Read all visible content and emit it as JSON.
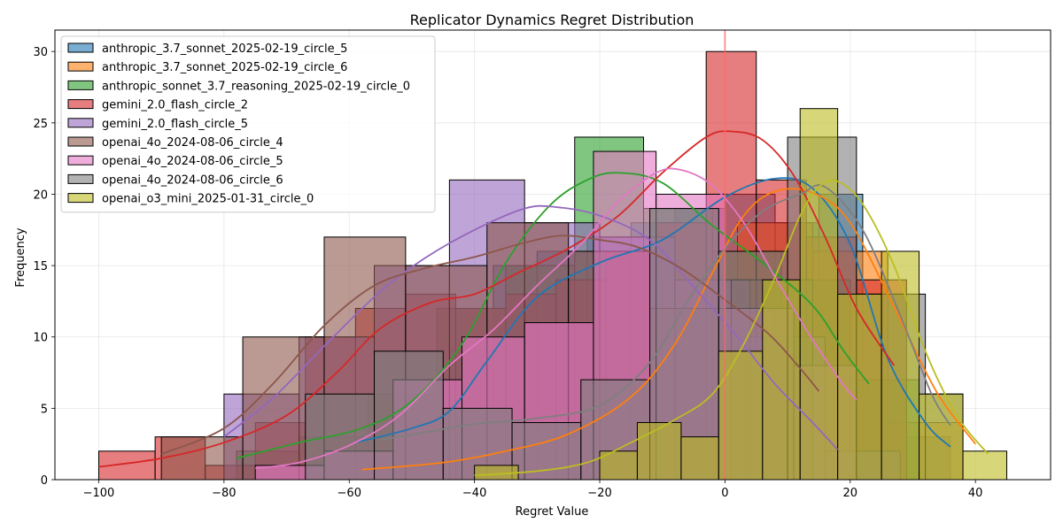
{
  "chart_data": {
    "type": "histogram",
    "title": "Replicator Dynamics Regret Distribution",
    "xlabel": "Regret Value",
    "ylabel": "Frequency",
    "xlim": [
      -107,
      52
    ],
    "ylim": [
      0,
      31.5
    ],
    "xticks": [
      -100,
      -80,
      -60,
      -40,
      -20,
      0,
      20,
      40
    ],
    "yticks": [
      0,
      5,
      10,
      15,
      20,
      25,
      30
    ],
    "grid": true,
    "legend_position": "top-left",
    "vline": {
      "x": 0,
      "color": "#ff6b6b"
    },
    "series": [
      {
        "name": "anthropic_3.7_sonnet_2025-02-19_circle_5",
        "color": "#1f77b4",
        "bins": [
          [
            -59,
            -52,
            2
          ],
          [
            -52,
            -44,
            5
          ],
          [
            -44,
            -37,
            9
          ],
          [
            -37,
            -30,
            15
          ],
          [
            -30,
            -22,
            16
          ],
          [
            -22,
            -15,
            17
          ],
          [
            -15,
            -8,
            18
          ],
          [
            -8,
            0,
            19
          ],
          [
            0,
            8,
            20
          ],
          [
            8,
            15,
            18
          ],
          [
            15,
            22,
            20
          ],
          [
            22,
            29,
            13
          ],
          [
            29,
            36,
            3
          ]
        ],
        "kde": [
          [
            -59,
            2.6
          ],
          [
            -50,
            3.6
          ],
          [
            -44,
            4.8
          ],
          [
            -38,
            8.3
          ],
          [
            -30,
            12.8
          ],
          [
            -20,
            15.2
          ],
          [
            -10,
            16.8
          ],
          [
            0,
            19.8
          ],
          [
            8,
            21.1
          ],
          [
            14,
            20.4
          ],
          [
            20,
            16.5
          ],
          [
            26,
            8.5
          ],
          [
            32,
            4.0
          ],
          [
            36,
            2.3
          ]
        ]
      },
      {
        "name": "anthropic_3.7_sonnet_2025-02-19_circle_6",
        "color": "#ff7f0e",
        "bins": [
          [
            -58,
            -46,
            1
          ],
          [
            -46,
            -34,
            2
          ],
          [
            -34,
            -22,
            3
          ],
          [
            -22,
            -10,
            7
          ],
          [
            -10,
            2,
            14
          ],
          [
            2,
            14,
            18
          ],
          [
            14,
            26,
            16
          ],
          [
            26,
            38,
            4
          ]
        ],
        "kde": [
          [
            -58,
            0.7
          ],
          [
            -45,
            1.2
          ],
          [
            -35,
            2.0
          ],
          [
            -25,
            3.2
          ],
          [
            -15,
            5.8
          ],
          [
            -8,
            9.5
          ],
          [
            -2,
            14.5
          ],
          [
            3,
            18.5
          ],
          [
            8,
            20.2
          ],
          [
            14,
            20.1
          ],
          [
            20,
            18.0
          ],
          [
            28,
            11.2
          ],
          [
            34,
            6.0
          ],
          [
            40,
            2.5
          ]
        ]
      },
      {
        "name": "anthropic_sonnet_3.7_reasoning_2025-02-19_circle_0",
        "color": "#2ca02c",
        "bins": [
          [
            -78,
            -68,
            2
          ],
          [
            -68,
            -57,
            3
          ],
          [
            -57,
            -46,
            6
          ],
          [
            -46,
            -35,
            12
          ],
          [
            -35,
            -24,
            15
          ],
          [
            -24,
            -13,
            24
          ],
          [
            -13,
            -2,
            19
          ],
          [
            -2,
            9,
            16
          ],
          [
            9,
            20,
            14
          ],
          [
            20,
            31,
            7
          ]
        ],
        "kde": [
          [
            -78,
            1.5
          ],
          [
            -68,
            2.6
          ],
          [
            -58,
            3.6
          ],
          [
            -50,
            5.5
          ],
          [
            -42,
            9.5
          ],
          [
            -35,
            15.2
          ],
          [
            -28,
            19.2
          ],
          [
            -22,
            21.0
          ],
          [
            -17,
            21.5
          ],
          [
            -10,
            20.8
          ],
          [
            -2,
            17.8
          ],
          [
            6,
            15.2
          ],
          [
            14,
            12.2
          ],
          [
            19,
            9.0
          ],
          [
            23,
            6.7
          ]
        ]
      },
      {
        "name": "gemini_2.0_flash_circle_2",
        "color": "#d62728",
        "bins": [
          [
            -100,
            -91,
            2
          ],
          [
            -91,
            -83,
            3
          ],
          [
            -83,
            -75,
            1
          ],
          [
            -75,
            -67,
            4
          ],
          [
            -67,
            -59,
            10
          ],
          [
            -59,
            -51,
            12
          ],
          [
            -51,
            -43,
            13
          ],
          [
            -43,
            -35,
            12
          ],
          [
            -35,
            -27,
            13
          ],
          [
            -27,
            -19,
            14
          ],
          [
            -19,
            -11,
            16
          ],
          [
            -11,
            -3,
            18
          ],
          [
            -3,
            5,
            30
          ],
          [
            5,
            13,
            21
          ],
          [
            13,
            21,
            17
          ],
          [
            21,
            29,
            14
          ]
        ],
        "kde": [
          [
            -100,
            0.9
          ],
          [
            -90,
            1.5
          ],
          [
            -80,
            2.6
          ],
          [
            -70,
            4.5
          ],
          [
            -62,
            7.5
          ],
          [
            -55,
            10.6
          ],
          [
            -47,
            12.4
          ],
          [
            -40,
            13.0
          ],
          [
            -33,
            14.5
          ],
          [
            -25,
            16.2
          ],
          [
            -17,
            18.5
          ],
          [
            -10,
            21.5
          ],
          [
            -3,
            24.0
          ],
          [
            1,
            24.4
          ],
          [
            6,
            23.8
          ],
          [
            11,
            21.3
          ],
          [
            16,
            17.0
          ],
          [
            21,
            12.0
          ],
          [
            27,
            8.0
          ]
        ]
      },
      {
        "name": "gemini_2.0_flash_circle_5",
        "color": "#9467bd",
        "bins": [
          [
            -80,
            -68,
            6
          ],
          [
            -68,
            -56,
            10
          ],
          [
            -56,
            -44,
            15
          ],
          [
            -44,
            -32,
            21
          ],
          [
            -32,
            -20,
            18
          ],
          [
            -20,
            -8,
            17
          ],
          [
            -8,
            4,
            14
          ],
          [
            4,
            16,
            10
          ],
          [
            16,
            28,
            2
          ]
        ],
        "kde": [
          [
            -80,
            3.0
          ],
          [
            -72,
            5.8
          ],
          [
            -63,
            9.8
          ],
          [
            -55,
            13.2
          ],
          [
            -48,
            15.5
          ],
          [
            -40,
            17.5
          ],
          [
            -32,
            19.0
          ],
          [
            -27,
            19.1
          ],
          [
            -20,
            18.5
          ],
          [
            -12,
            16.8
          ],
          [
            -5,
            13.5
          ],
          [
            2,
            10.0
          ],
          [
            8,
            6.7
          ],
          [
            14,
            4.0
          ],
          [
            18,
            2.1
          ]
        ]
      },
      {
        "name": "openai_4o_2024-08-06_circle_4",
        "color": "#8c564b",
        "bins": [
          [
            -90,
            -77,
            3
          ],
          [
            -77,
            -64,
            10
          ],
          [
            -64,
            -51,
            17
          ],
          [
            -51,
            -38,
            15
          ],
          [
            -38,
            -25,
            18
          ],
          [
            -25,
            -12,
            16
          ],
          [
            -12,
            1,
            12
          ],
          [
            1,
            14,
            14
          ]
        ],
        "kde": [
          [
            -90,
            1.8
          ],
          [
            -80,
            3.6
          ],
          [
            -72,
            6.8
          ],
          [
            -64,
            10.8
          ],
          [
            -56,
            13.6
          ],
          [
            -48,
            14.8
          ],
          [
            -40,
            15.6
          ],
          [
            -32,
            16.6
          ],
          [
            -26,
            17.1
          ],
          [
            -20,
            16.8
          ],
          [
            -14,
            16.3
          ],
          [
            -7,
            14.8
          ],
          [
            0,
            12.6
          ],
          [
            7,
            10.2
          ],
          [
            12,
            7.8
          ],
          [
            15,
            6.2
          ]
        ]
      },
      {
        "name": "openai_4o_2024-08-06_circle_5",
        "color": "#e377c2",
        "bins": [
          [
            -75,
            -64,
            1
          ],
          [
            -64,
            -53,
            2
          ],
          [
            -53,
            -42,
            7
          ],
          [
            -42,
            -32,
            10
          ],
          [
            -32,
            -21,
            11
          ],
          [
            -21,
            -11,
            23
          ],
          [
            -11,
            0,
            20
          ],
          [
            0,
            11,
            12
          ],
          [
            11,
            21,
            8
          ]
        ],
        "kde": [
          [
            -75,
            0.8
          ],
          [
            -68,
            1.2
          ],
          [
            -60,
            2.4
          ],
          [
            -52,
            4.5
          ],
          [
            -44,
            8.0
          ],
          [
            -37,
            10.5
          ],
          [
            -30,
            13.6
          ],
          [
            -23,
            16.5
          ],
          [
            -17,
            19.5
          ],
          [
            -11,
            21.5
          ],
          [
            -7,
            21.7
          ],
          [
            -2,
            20.6
          ],
          [
            3,
            18.0
          ],
          [
            8,
            14.2
          ],
          [
            14,
            9.8
          ],
          [
            19,
            6.6
          ],
          [
            21,
            5.6
          ]
        ]
      },
      {
        "name": "openai_4o_2024-08-06_circle_6",
        "color": "#7f7f7f",
        "bins": [
          [
            -67,
            -56,
            6
          ],
          [
            -56,
            -45,
            9
          ],
          [
            -45,
            -34,
            5
          ],
          [
            -34,
            -23,
            4
          ],
          [
            -23,
            -12,
            7
          ],
          [
            -12,
            -1,
            19
          ],
          [
            -1,
            10,
            16
          ],
          [
            10,
            21,
            24
          ],
          [
            21,
            32,
            13
          ],
          [
            32,
            38,
            6
          ]
        ],
        "kde": [
          [
            -55,
            2.8
          ],
          [
            -48,
            3.3
          ],
          [
            -40,
            3.9
          ],
          [
            -30,
            4.3
          ],
          [
            -20,
            5.2
          ],
          [
            -12,
            8.2
          ],
          [
            -6,
            12.5
          ],
          [
            0,
            16.2
          ],
          [
            6,
            18.8
          ],
          [
            12,
            20.0
          ],
          [
            16,
            20.5
          ],
          [
            22,
            17.5
          ],
          [
            28,
            11.5
          ],
          [
            33,
            6.0
          ],
          [
            36,
            3.8
          ]
        ]
      },
      {
        "name": "openai_o3_mini_2025-01-31_circle_0",
        "color": "#bcbd22",
        "bins": [
          [
            -40,
            -33,
            1
          ],
          [
            -20,
            -14,
            2
          ],
          [
            -14,
            -7,
            4
          ],
          [
            -7,
            -1,
            3
          ],
          [
            -1,
            6,
            9
          ],
          [
            6,
            12,
            14
          ],
          [
            12,
            18,
            26
          ],
          [
            18,
            25,
            13
          ],
          [
            25,
            31,
            16
          ],
          [
            31,
            38,
            6
          ],
          [
            38,
            45,
            2
          ]
        ],
        "kde": [
          [
            -40,
            0.3
          ],
          [
            -30,
            0.6
          ],
          [
            -22,
            1.2
          ],
          [
            -15,
            2.6
          ],
          [
            -8,
            4.2
          ],
          [
            -2,
            6.0
          ],
          [
            3,
            9.5
          ],
          [
            8,
            14.2
          ],
          [
            12,
            18.5
          ],
          [
            15,
            20.5
          ],
          [
            18,
            20.9
          ],
          [
            22,
            19.3
          ],
          [
            27,
            15.0
          ],
          [
            32,
            9.0
          ],
          [
            37,
            4.5
          ],
          [
            42,
            1.8
          ]
        ]
      }
    ]
  }
}
